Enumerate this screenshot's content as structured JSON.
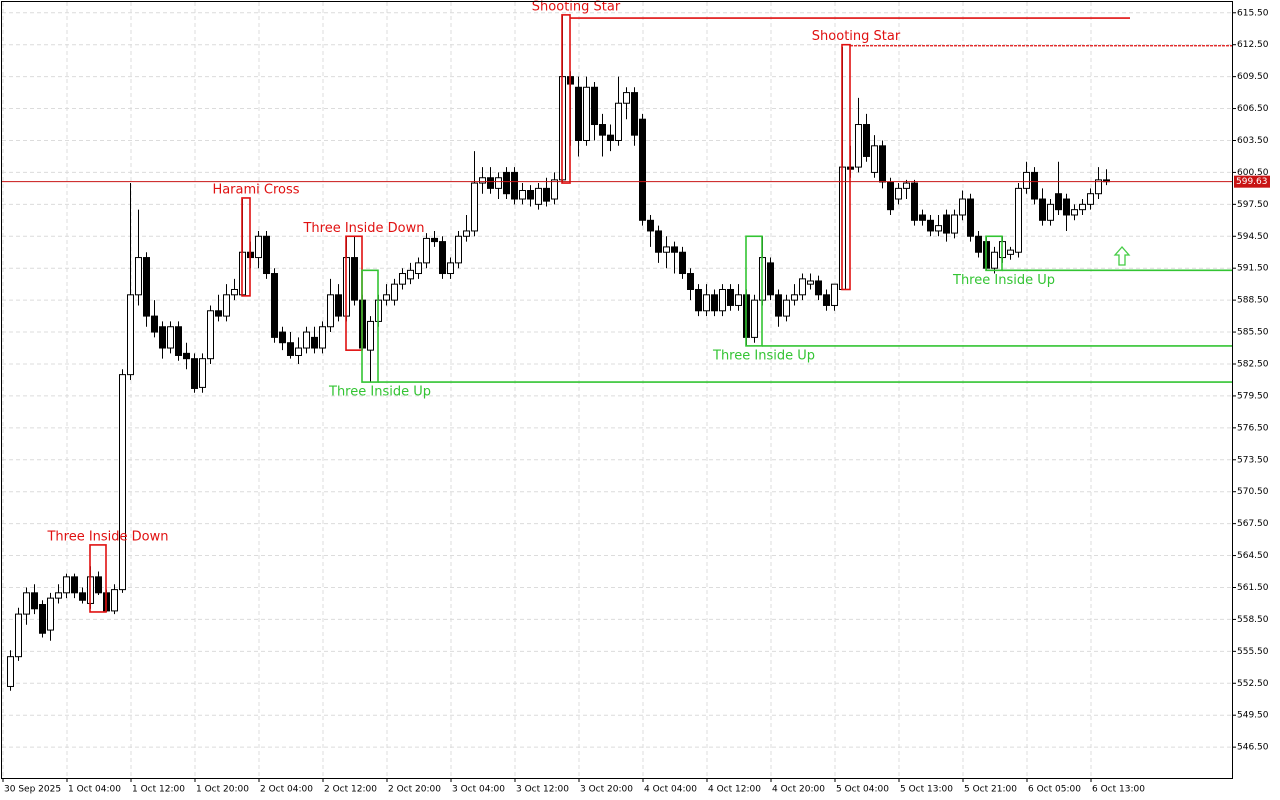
{
  "chart_data": {
    "type": "candlestick",
    "ylim": [
      543.6,
      616.7
    ],
    "yticks": [
      {
        "value": 546.5,
        "label": "546.50"
      },
      {
        "value": 549.5,
        "label": "549.50"
      },
      {
        "value": 552.5,
        "label": "552.50"
      },
      {
        "value": 555.5,
        "label": "555.50"
      },
      {
        "value": 558.5,
        "label": "558.50"
      },
      {
        "value": 561.5,
        "label": "561.50"
      },
      {
        "value": 564.5,
        "label": "564.50"
      },
      {
        "value": 567.5,
        "label": "567.50"
      },
      {
        "value": 570.5,
        "label": "570.50"
      },
      {
        "value": 573.5,
        "label": "573.50"
      },
      {
        "value": 576.5,
        "label": "576.50"
      },
      {
        "value": 579.5,
        "label": "579.50"
      },
      {
        "value": 582.5,
        "label": "582.50"
      },
      {
        "value": 585.5,
        "label": "585.50"
      },
      {
        "value": 588.5,
        "label": "588.50"
      },
      {
        "value": 591.5,
        "label": "591.50"
      },
      {
        "value": 594.5,
        "label": "594.50"
      },
      {
        "value": 597.5,
        "label": "597.50"
      },
      {
        "value": 600.5,
        "label": "600.50"
      },
      {
        "value": 603.5,
        "label": "603.50"
      },
      {
        "value": 606.5,
        "label": "606.50"
      },
      {
        "value": 609.5,
        "label": "609.50"
      },
      {
        "value": 612.5,
        "label": "612.50"
      },
      {
        "value": 615.5,
        "label": "615.50"
      }
    ],
    "grid": true,
    "up_color": "#ffffff",
    "down_color": "#000000",
    "price": 599.63,
    "price_color": "#c81414",
    "categories": [
      "30 Sep 2025",
      null,
      null,
      null,
      null,
      null,
      null,
      null,
      "1 Oct 04:00",
      null,
      null,
      null,
      null,
      null,
      null,
      null,
      "1 Oct 12:00",
      null,
      null,
      null,
      null,
      null,
      null,
      null,
      "1 Oct 20:00",
      null,
      null,
      null,
      null,
      null,
      null,
      null,
      "2 Oct 04:00",
      null,
      null,
      null,
      null,
      null,
      null,
      null,
      "2 Oct 12:00",
      null,
      null,
      null,
      null,
      null,
      null,
      null,
      "2 Oct 20:00",
      null,
      null,
      null,
      null,
      null,
      null,
      null,
      "3 Oct 04:00",
      null,
      null,
      null,
      null,
      null,
      null,
      null,
      "3 Oct 12:00",
      null,
      null,
      null,
      null,
      null,
      null,
      null,
      "3 Oct 20:00",
      null,
      null,
      null,
      null,
      null,
      null,
      null,
      "4 Oct 04:00",
      null,
      null,
      null,
      null,
      null,
      null,
      null,
      "4 Oct 12:00",
      null,
      null,
      null,
      null,
      null,
      null,
      null,
      "4 Oct 20:00",
      null,
      null,
      null,
      null,
      null,
      null,
      null,
      "5 Oct 04:00",
      null,
      null,
      null,
      null,
      null,
      null,
      null,
      "5 Oct 13:00",
      null,
      null,
      null,
      null,
      null,
      null,
      null,
      "5 Oct 21:00",
      null,
      null,
      null,
      null,
      null,
      null,
      null,
      "6 Oct 05:00",
      null,
      null,
      null,
      null,
      null,
      null,
      null,
      "6 Oct 13:00",
      null
    ],
    "candles": [
      [
        552.2,
        555.6,
        551.8,
        555
      ],
      [
        555,
        559.6,
        554.6,
        559
      ],
      [
        559,
        561.5,
        558,
        561
      ],
      [
        561,
        561.8,
        559,
        559.5
      ],
      [
        559.9,
        560.3,
        556.8,
        557.2
      ],
      [
        557.5,
        561,
        556.5,
        560.5
      ],
      [
        560.5,
        561.8,
        560,
        561
      ],
      [
        561,
        562.8,
        560.5,
        562.5
      ],
      [
        562.5,
        562.8,
        560.5,
        561
      ],
      [
        561,
        561.5,
        560,
        560.3
      ],
      [
        560,
        563.5,
        559.5,
        562.5
      ],
      [
        562.5,
        563,
        560.8,
        561
      ],
      [
        561,
        561.3,
        559.2,
        559.3
      ],
      [
        559.3,
        561.8,
        559,
        561.3
      ],
      [
        561.3,
        582,
        561,
        581.5
      ],
      [
        581.5,
        599.5,
        581,
        589
      ],
      [
        589,
        597,
        588,
        592.5
      ],
      [
        592.5,
        593,
        586,
        587
      ],
      [
        587,
        588.5,
        585,
        585.5
      ],
      [
        586,
        586.5,
        583,
        584
      ],
      [
        584,
        586.5,
        583.5,
        586
      ],
      [
        586,
        586.5,
        582.8,
        583.3
      ],
      [
        583.5,
        584.5,
        582,
        583
      ],
      [
        583,
        583.5,
        579.8,
        580.2
      ],
      [
        580.3,
        583.5,
        579.8,
        583
      ],
      [
        583,
        588,
        582.5,
        587.5
      ],
      [
        587.5,
        589,
        586.5,
        587
      ],
      [
        587,
        590,
        586.5,
        589
      ],
      [
        589,
        590.5,
        588.5,
        589.5
      ],
      [
        589,
        598,
        588.9,
        593
      ],
      [
        593,
        594,
        591.5,
        592.5
      ],
      [
        592.5,
        595,
        591.5,
        594.5
      ],
      [
        594.5,
        595,
        590.5,
        591
      ],
      [
        591,
        591.5,
        584.5,
        585
      ],
      [
        585.5,
        586,
        583.8,
        584.5
      ],
      [
        584.5,
        585.5,
        583,
        583.3
      ],
      [
        583.3,
        585,
        582.5,
        584
      ],
      [
        584,
        586,
        583.5,
        585.5
      ],
      [
        585,
        586,
        583.5,
        584
      ],
      [
        584,
        586.5,
        583.5,
        586
      ],
      [
        586,
        590.5,
        585.5,
        589
      ],
      [
        589,
        590,
        586.5,
        587
      ],
      [
        587,
        594.5,
        586.5,
        592.5
      ],
      [
        592.5,
        594.5,
        588,
        588.5
      ],
      [
        588.5,
        589,
        583.8,
        584
      ],
      [
        583.8,
        587,
        580.8,
        586.5
      ],
      [
        586.5,
        589,
        586,
        588.5
      ],
      [
        588.5,
        590,
        588,
        589
      ],
      [
        588.5,
        590.5,
        588,
        590
      ],
      [
        590,
        591.5,
        589.5,
        591
      ],
      [
        590.5,
        592,
        590,
        591.3
      ],
      [
        591,
        592.5,
        590.5,
        592
      ],
      [
        592,
        594.8,
        591.5,
        594.3
      ],
      [
        594.3,
        595,
        593.5,
        594
      ],
      [
        594,
        594.5,
        590.5,
        591
      ],
      [
        591,
        592.5,
        590.5,
        592
      ],
      [
        592,
        595,
        591.5,
        594.5
      ],
      [
        594.5,
        596.5,
        594,
        595
      ],
      [
        595,
        602.5,
        594.5,
        599.5
      ],
      [
        599.5,
        601,
        598.5,
        600
      ],
      [
        600,
        601,
        598.5,
        599
      ],
      [
        599,
        600.5,
        598,
        600
      ],
      [
        600.5,
        601,
        598,
        598.5
      ],
      [
        600.5,
        601,
        597.5,
        598
      ],
      [
        598,
        599.5,
        597.5,
        598.8
      ],
      [
        598.8,
        599.3,
        597.3,
        598
      ],
      [
        597.5,
        599.5,
        597,
        599
      ],
      [
        599,
        600,
        597.3,
        597.8
      ],
      [
        598,
        600.5,
        597.5,
        599.8
      ],
      [
        599.8,
        615.3,
        599.5,
        609.5
      ],
      [
        609.5,
        610,
        603,
        608.8
      ],
      [
        608.5,
        609.5,
        602,
        603.5
      ],
      [
        603.5,
        609.5,
        603,
        608.5
      ],
      [
        608.5,
        609,
        603.5,
        605
      ],
      [
        605,
        606,
        602,
        604
      ],
      [
        604,
        605,
        602.5,
        603.5
      ],
      [
        603.5,
        609.5,
        603,
        607
      ],
      [
        607,
        608.5,
        605.5,
        608
      ],
      [
        608,
        608.5,
        603,
        604
      ],
      [
        605.5,
        606,
        595.5,
        596
      ],
      [
        596,
        596.5,
        593.5,
        595
      ],
      [
        595,
        595.5,
        592,
        593
      ],
      [
        593,
        594.5,
        591.5,
        593.5
      ],
      [
        593.5,
        594,
        591,
        593
      ],
      [
        593,
        593.5,
        590.5,
        591
      ],
      [
        591,
        591.5,
        588.5,
        589.5
      ],
      [
        589.5,
        590,
        587,
        587.5
      ],
      [
        587.5,
        590,
        587,
        589
      ],
      [
        589,
        589.5,
        587,
        587.5
      ],
      [
        587.5,
        590,
        587,
        589.5
      ],
      [
        589.5,
        590,
        587.5,
        588
      ],
      [
        588,
        590,
        587.5,
        589
      ],
      [
        589,
        589.5,
        584.2,
        585
      ],
      [
        585,
        589,
        584.5,
        588.5
      ],
      [
        588.5,
        594.5,
        588,
        592.5
      ],
      [
        592,
        592.5,
        588.5,
        589
      ],
      [
        589,
        589.5,
        586,
        587
      ],
      [
        587,
        589,
        586.5,
        588.5
      ],
      [
        588.5,
        590,
        588,
        589
      ],
      [
        589,
        591,
        588.5,
        590.5
      ],
      [
        590,
        591,
        589.5,
        590.3
      ],
      [
        590.3,
        590.8,
        588.5,
        589
      ],
      [
        589,
        589.5,
        587.5,
        588
      ],
      [
        588,
        590,
        587.5,
        590
      ],
      [
        589.5,
        612.3,
        589.5,
        601
      ],
      [
        601,
        603,
        600,
        600.8
      ],
      [
        601,
        607.5,
        600.5,
        605
      ],
      [
        605,
        606,
        601.5,
        602
      ],
      [
        600.5,
        604,
        600,
        603
      ],
      [
        603,
        603.5,
        599,
        599.6
      ],
      [
        599.6,
        600,
        596.5,
        597
      ],
      [
        598,
        599.5,
        597.5,
        599
      ],
      [
        599,
        599.8,
        598,
        599.5
      ],
      [
        599.5,
        599.8,
        595.5,
        596
      ],
      [
        596.5,
        597,
        595.5,
        596
      ],
      [
        596,
        596.5,
        594.5,
        595
      ],
      [
        595,
        596.5,
        594.5,
        595.5
      ],
      [
        596.5,
        597,
        594,
        594.8
      ],
      [
        594.8,
        597,
        594.3,
        596.5
      ],
      [
        596.5,
        598.8,
        596,
        598
      ],
      [
        598,
        598.5,
        594,
        594.5
      ],
      [
        594.5,
        595,
        592.5,
        593
      ],
      [
        594,
        594.5,
        591.3,
        591.5
      ],
      [
        591.5,
        593.5,
        591,
        593
      ],
      [
        592.5,
        594.5,
        592,
        594
      ],
      [
        592.8,
        593.5,
        592.3,
        593.2
      ],
      [
        593,
        599.5,
        592.5,
        599
      ],
      [
        599,
        601.5,
        598.5,
        600.5
      ],
      [
        600.5,
        601,
        597.5,
        598
      ],
      [
        598,
        599,
        595.5,
        596
      ],
      [
        596,
        598,
        595.5,
        597.5
      ],
      [
        598.5,
        601.5,
        596.5,
        597
      ],
      [
        598,
        598.5,
        595,
        596.5
      ],
      [
        596.5,
        597.5,
        596,
        597
      ],
      [
        597,
        598,
        596.5,
        597.5
      ],
      [
        597.5,
        599,
        597,
        598.5
      ],
      [
        598.5,
        601,
        598,
        599.8
      ],
      [
        599.8,
        600.8,
        599.3,
        599.63
      ]
    ],
    "patterns": [
      {
        "label": "Three Inside Down",
        "color": "#e01010",
        "start": 10,
        "end": 12,
        "top": 565.5,
        "bottom": 559.2
      },
      {
        "label": "Harami Cross",
        "color": "#e01010",
        "start": 29,
        "end": 30,
        "top": 598.1,
        "bottom": 588.9
      },
      {
        "label": "Three Inside Down",
        "color": "#e01010",
        "start": 42,
        "end": 44,
        "top": 594.5,
        "bottom": 583.8
      },
      {
        "label": "Three Inside Up",
        "color": "#33c433",
        "start": 44,
        "end": 46,
        "top": 591.3,
        "bottom": 580.8,
        "level": 580.8
      },
      {
        "label": "Shooting Star",
        "color": "#e01010",
        "start": 69,
        "end": 70,
        "top": 615.3,
        "bottom": 599.5,
        "level": 615.0,
        "line_end": 140
      },
      {
        "label": "Three Inside Up",
        "color": "#33c433",
        "start": 92,
        "end": 94,
        "top": 594.5,
        "bottom": 584.2,
        "level": 584.2
      },
      {
        "label": "Shooting Star",
        "color": "#e01010",
        "start": 104,
        "end": 105,
        "top": 612.5,
        "bottom": 589.5,
        "level": 612.4,
        "line_style": "dashed"
      },
      {
        "label": "Three Inside Up",
        "color": "#33c433",
        "start": 122,
        "end": 124,
        "top": 594.5,
        "bottom": 591.3,
        "level": 591.3
      }
    ]
  }
}
